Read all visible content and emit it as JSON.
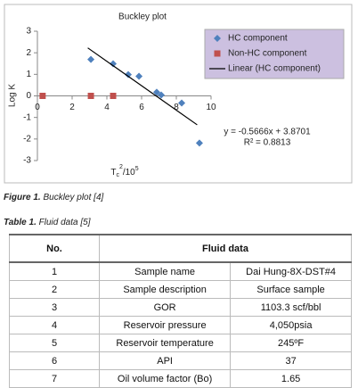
{
  "chart_data": {
    "type": "scatter",
    "title": "Buckley plot",
    "y_label": "Log K",
    "x_label": [
      "T",
      "c",
      "2",
      "/10",
      "5"
    ],
    "xlim": [
      0,
      10
    ],
    "xticks": [
      0,
      2,
      4,
      6,
      8,
      10
    ],
    "ylim": [
      -3,
      3
    ],
    "yticks": [
      -3,
      -2,
      -1,
      0,
      1,
      2,
      3
    ],
    "grid": false,
    "legend": "upper right",
    "series": [
      {
        "name": "HC component",
        "color": "#4f81bd",
        "marker": "diamond",
        "x": [
          3.08,
          4.36,
          5.23,
          5.85,
          6.87,
          7.13,
          8.31,
          9.33
        ],
        "values": [
          1.69,
          1.49,
          0.99,
          0.91,
          0.17,
          0.04,
          -0.33,
          -2.19
        ]
      },
      {
        "name": "Non-HC component",
        "color": "#c0504d",
        "marker": "square",
        "x": [
          0.3,
          3.08,
          4.36
        ],
        "values": [
          0,
          0,
          0
        ]
      },
      {
        "name": "Linear (HC component)",
        "color": "#000000",
        "marker": "line",
        "x": [
          2.9,
          9.2
        ],
        "values": [
          2.227,
          -1.3426
        ]
      }
    ],
    "annotations": [
      "y = -0.5666x + 3.8701",
      "R² = 0.8813"
    ]
  },
  "figure_caption": {
    "label": "Figure 1.",
    "text": "Buckley plot [4]"
  },
  "table_caption": {
    "label": "Table 1.",
    "text": "Fluid data [5]"
  },
  "table": {
    "header": [
      "No.",
      "Fluid data"
    ],
    "rows": [
      [
        "1",
        "Sample name",
        "Dai Hung-8X-DST#4"
      ],
      [
        "2",
        "Sample description",
        "Surface sample"
      ],
      [
        "3",
        "GOR",
        "1103.3 scf/bbl"
      ],
      [
        "4",
        "Reservoir pressure",
        "4,050psia"
      ],
      [
        "5",
        "Reservoir temperature",
        "245ºF"
      ],
      [
        "6",
        "API",
        "37"
      ],
      [
        "7",
        "Oil volume factor (Bo)",
        "1.65"
      ]
    ]
  }
}
